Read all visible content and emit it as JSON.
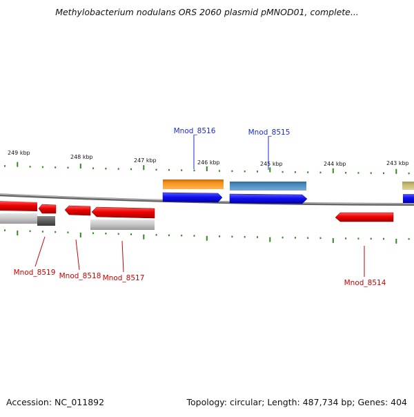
{
  "title": "Methylobacterium nodulans ORS 2060 plasmid pMNOD01, complete...",
  "footer": {
    "accession": "Accession: NC_011892",
    "summary": "Topology: circular; Length: 487,734 bp; Genes: 404"
  },
  "ticks": {
    "labels": [
      {
        "id": "t249",
        "text": "249 kbp"
      },
      {
        "id": "t248",
        "text": "248 kbp"
      },
      {
        "id": "t247",
        "text": "247 kbp"
      },
      {
        "id": "t246",
        "text": "246 kbp"
      },
      {
        "id": "t245",
        "text": "245 kbp"
      },
      {
        "id": "t244",
        "text": "244 kbp"
      },
      {
        "id": "t243",
        "text": "243 kbp"
      }
    ]
  },
  "genes": {
    "forward": [
      {
        "name": "Mnod_8516",
        "color": "#1a2bd6"
      },
      {
        "name": "Mnod_8515",
        "color": "#1a2bd6"
      }
    ],
    "reverse": [
      {
        "name": "Mnod_8519",
        "color": "#cc0000"
      },
      {
        "name": "Mnod_8518",
        "color": "#cc0000"
      },
      {
        "name": "Mnod_8517",
        "color": "#cc0000"
      },
      {
        "name": "Mnod_8514",
        "color": "#cc0000"
      }
    ]
  },
  "colors": {
    "forward_gene": "#1010f0",
    "reverse_gene": "#ee0000",
    "tick": "#2d8a1d",
    "backbone": "#777777",
    "label_forward": "#1a2bd6",
    "label_reverse": "#cc0000"
  }
}
